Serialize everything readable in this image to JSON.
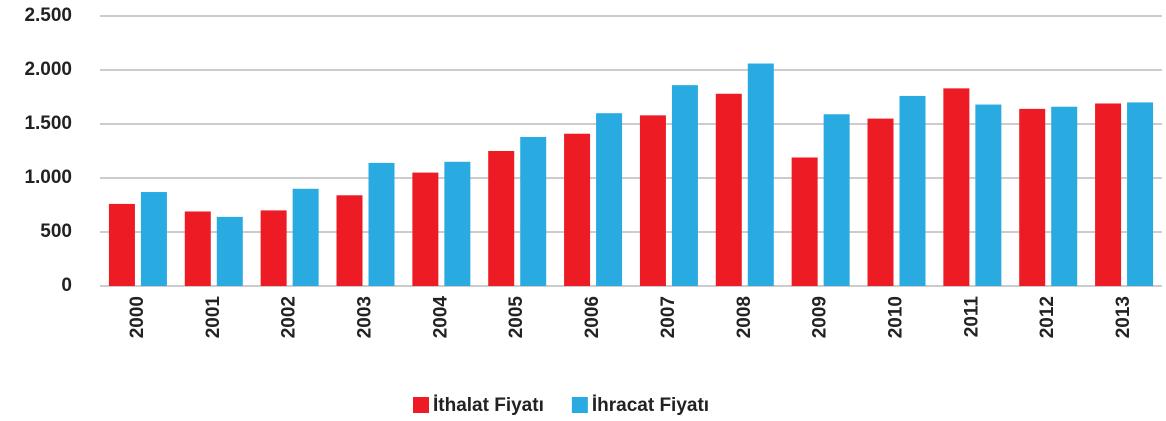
{
  "chart_data": {
    "type": "bar",
    "categories": [
      "2000",
      "2001",
      "2002",
      "2003",
      "2004",
      "2005",
      "2006",
      "2007",
      "2008",
      "2009",
      "2010",
      "2011",
      "2012",
      "2013"
    ],
    "series": [
      {
        "name": "İthalat Fiyatı",
        "color": "#ed1c24",
        "values": [
          760,
          690,
          700,
          840,
          1050,
          1250,
          1410,
          1580,
          1780,
          1190,
          1550,
          1830,
          1640,
          1690
        ]
      },
      {
        "name": "İhracat Fiyatı",
        "color": "#29abe2",
        "values": [
          870,
          640,
          900,
          1140,
          1150,
          1380,
          1600,
          1860,
          2060,
          1590,
          1760,
          1680,
          1660,
          1700
        ]
      }
    ],
    "ylim": [
      0,
      2500
    ],
    "yticks": [
      0,
      500,
      {
        "value": 1000,
        "label": "1.000"
      },
      {
        "value": 1500,
        "label": "1.500"
      },
      {
        "value": 2000,
        "label": "2.000"
      },
      {
        "value": 2500,
        "label": "2.500"
      }
    ],
    "grid": true,
    "legend": "bottom"
  }
}
